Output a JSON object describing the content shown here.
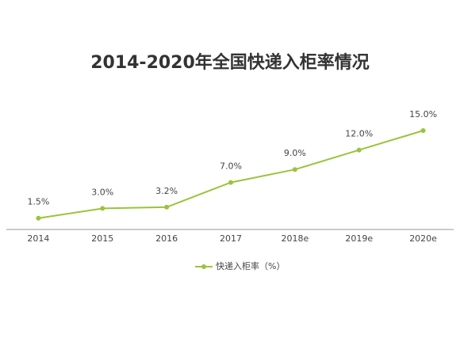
{
  "chart_data": {
    "type": "line",
    "title": "2014-2020年全国快递入柜率情况",
    "categories": [
      "2014",
      "2015",
      "2016",
      "2017",
      "2018e",
      "2019e",
      "2020e"
    ],
    "series": [
      {
        "name": "快递入柜率（%）",
        "color": "#9ac43b",
        "values": [
          1.5,
          3.0,
          3.2,
          7.0,
          9.0,
          12.0,
          15.0
        ],
        "value_labels": [
          "1.5%",
          "3.0%",
          "3.2%",
          "7.0%",
          "9.0%",
          "12.0%",
          "15.0%"
        ]
      }
    ]
  }
}
